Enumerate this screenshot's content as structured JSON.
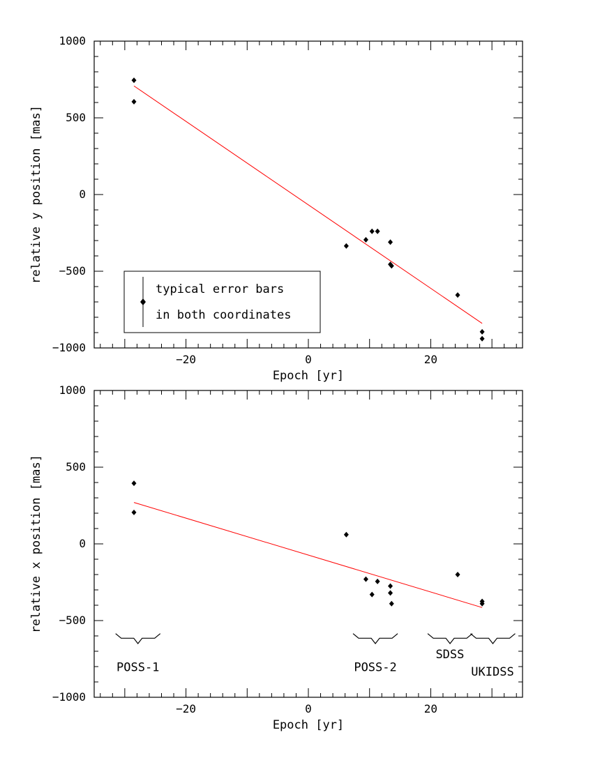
{
  "chart_data": [
    {
      "type": "scatter",
      "panel": "top",
      "xlabel": "Epoch [yr]",
      "ylabel": "relative y position [mas]",
      "xlim": [
        -35,
        35
      ],
      "ylim": [
        -1000,
        1000
      ],
      "x_ticks": [
        -20,
        0,
        20
      ],
      "y_ticks": [
        -1000,
        -500,
        0,
        500,
        1000
      ],
      "points": [
        {
          "x": -28.5,
          "y": 745
        },
        {
          "x": -28.5,
          "y": 605
        },
        {
          "x": 6.2,
          "y": -335
        },
        {
          "x": 9.4,
          "y": -295
        },
        {
          "x": 10.4,
          "y": -240
        },
        {
          "x": 11.3,
          "y": -240
        },
        {
          "x": 13.4,
          "y": -310
        },
        {
          "x": 13.4,
          "y": -455
        },
        {
          "x": 13.6,
          "y": -465
        },
        {
          "x": 24.4,
          "y": -655
        },
        {
          "x": 28.4,
          "y": -895
        },
        {
          "x": 28.4,
          "y": -940
        }
      ],
      "fit_line": [
        {
          "x": -28.5,
          "y": 708
        },
        {
          "x": 28.4,
          "y": -840
        }
      ],
      "legend": {
        "line1": "typical error bars",
        "line2": "in both coordinates",
        "placement": "bottom-left"
      },
      "colors": {
        "fit": "#ff0000",
        "points": "#000000"
      }
    },
    {
      "type": "scatter",
      "panel": "bottom",
      "xlabel": "Epoch [yr]",
      "ylabel": "relative x position [mas]",
      "xlim": [
        -35,
        35
      ],
      "ylim": [
        -1000,
        1000
      ],
      "x_ticks": [
        -20,
        0,
        20
      ],
      "y_ticks": [
        -1000,
        -500,
        0,
        500,
        1000
      ],
      "points": [
        {
          "x": -28.5,
          "y": 395
        },
        {
          "x": -28.5,
          "y": 205
        },
        {
          "x": 6.2,
          "y": 60
        },
        {
          "x": 9.4,
          "y": -230
        },
        {
          "x": 10.4,
          "y": -330
        },
        {
          "x": 11.3,
          "y": -245
        },
        {
          "x": 13.4,
          "y": -275
        },
        {
          "x": 13.4,
          "y": -320
        },
        {
          "x": 13.6,
          "y": -390
        },
        {
          "x": 24.4,
          "y": -200
        },
        {
          "x": 28.4,
          "y": -375
        },
        {
          "x": 28.4,
          "y": -390
        }
      ],
      "fit_line": [
        {
          "x": -28.5,
          "y": 270
        },
        {
          "x": 28.4,
          "y": -415
        }
      ],
      "surveys": [
        {
          "label": "POSS-1",
          "range": [
            -31.5,
            -24.2
          ]
        },
        {
          "label": "POSS-2",
          "range": [
            7.3,
            14.6
          ]
        },
        {
          "label": "SDSS",
          "range": [
            19.5,
            26.8
          ]
        },
        {
          "label": "UKIDSS",
          "range": [
            26.5,
            33.8
          ]
        }
      ],
      "colors": {
        "fit": "#ff0000",
        "points": "#000000"
      }
    }
  ]
}
